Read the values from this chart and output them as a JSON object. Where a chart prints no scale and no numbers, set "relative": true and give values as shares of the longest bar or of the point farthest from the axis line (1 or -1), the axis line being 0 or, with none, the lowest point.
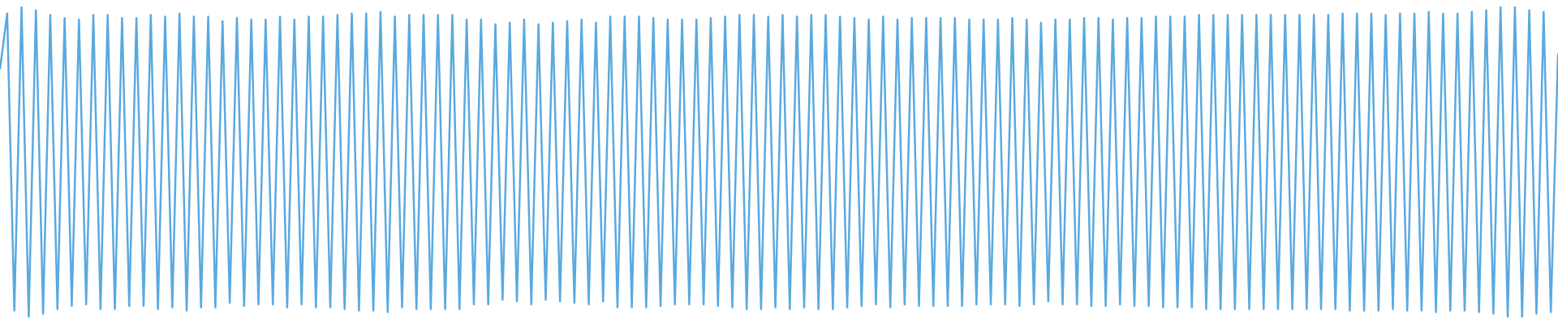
{
  "chart_data": {
    "type": "line",
    "relative": true,
    "categories": [
      null,
      null,
      null,
      null,
      null,
      null,
      null,
      null,
      null,
      null,
      null,
      null,
      null,
      null,
      null,
      null,
      null,
      null,
      null,
      null,
      null,
      null,
      null,
      null,
      null,
      null,
      null,
      null,
      null,
      null,
      null,
      null,
      null,
      null,
      null,
      null,
      null,
      null,
      null,
      null,
      null,
      null,
      null,
      null,
      null,
      null,
      null,
      null,
      null,
      null,
      null,
      null,
      null,
      null,
      null,
      null,
      null,
      null,
      null,
      null,
      null,
      null,
      null,
      null,
      null,
      null,
      null,
      null,
      null,
      null,
      null,
      null,
      null,
      null,
      null,
      null,
      null,
      null,
      null,
      null,
      null,
      null,
      null,
      null,
      null,
      null,
      null,
      null,
      null,
      null,
      null,
      null,
      null,
      null,
      null,
      null,
      null,
      null,
      null,
      null,
      null,
      null,
      null,
      null,
      null,
      null,
      null,
      null,
      null,
      null,
      null,
      null,
      null,
      null,
      null,
      null,
      null,
      null,
      null,
      null,
      null,
      null,
      null,
      null,
      null,
      null,
      null,
      null,
      null,
      null,
      null,
      null,
      null,
      null,
      null,
      null,
      null,
      null,
      null,
      null,
      null,
      null,
      null,
      null,
      null,
      null,
      null,
      null,
      null,
      null,
      null,
      null,
      null,
      null,
      null,
      null,
      null,
      null,
      null,
      null,
      null,
      null,
      null,
      null,
      null,
      null,
      null,
      null,
      null,
      null,
      null,
      null,
      null,
      null,
      null,
      null,
      null,
      null,
      null,
      null,
      null,
      null,
      null,
      null,
      null,
      null,
      null,
      null,
      null,
      null,
      null,
      null,
      null,
      null,
      null,
      null,
      null,
      null,
      null,
      null,
      null,
      null,
      null,
      null,
      null,
      null,
      null,
      null,
      null,
      null,
      null,
      null,
      null,
      null,
      null,
      null,
      null,
      null
    ],
    "series": [
      {
        "color": "#5aa9e0",
        "values": [
          0.8,
          0.98,
          0.02,
          1,
          0,
          0.99,
          0.01,
          0.975,
          0.025,
          0.965,
          0.035,
          0.96,
          0.04,
          0.975,
          0.025,
          0.975,
          0.025,
          0.965,
          0.035,
          0.965,
          0.035,
          0.975,
          0.025,
          0.97,
          0.03,
          0.98,
          0.02,
          0.97,
          0.03,
          0.97,
          0.03,
          0.955,
          0.045,
          0.965,
          0.035,
          0.96,
          0.04,
          0.96,
          0.04,
          0.97,
          0.03,
          0.96,
          0.04,
          0.97,
          0.03,
          0.97,
          0.03,
          0.975,
          0.025,
          0.98,
          0.02,
          0.98,
          0.02,
          0.985,
          0.015,
          0.97,
          0.03,
          0.975,
          0.025,
          0.975,
          0.025,
          0.975,
          0.025,
          0.975,
          0.025,
          0.96,
          0.04,
          0.96,
          0.04,
          0.945,
          0.055,
          0.95,
          0.05,
          0.96,
          0.04,
          0.945,
          0.055,
          0.95,
          0.05,
          0.955,
          0.045,
          0.96,
          0.04,
          0.95,
          0.05,
          0.97,
          0.03,
          0.97,
          0.03,
          0.97,
          0.03,
          0.965,
          0.035,
          0.96,
          0.04,
          0.96,
          0.04,
          0.96,
          0.04,
          0.965,
          0.035,
          0.97,
          0.03,
          0.975,
          0.025,
          0.975,
          0.025,
          0.97,
          0.03,
          0.975,
          0.025,
          0.97,
          0.03,
          0.975,
          0.025,
          0.975,
          0.025,
          0.97,
          0.03,
          0.965,
          0.035,
          0.96,
          0.04,
          0.97,
          0.03,
          0.96,
          0.04,
          0.965,
          0.035,
          0.965,
          0.035,
          0.965,
          0.035,
          0.965,
          0.035,
          0.96,
          0.04,
          0.96,
          0.04,
          0.96,
          0.04,
          0.965,
          0.035,
          0.96,
          0.04,
          0.95,
          0.05,
          0.96,
          0.04,
          0.96,
          0.04,
          0.965,
          0.035,
          0.965,
          0.035,
          0.96,
          0.04,
          0.965,
          0.035,
          0.965,
          0.035,
          0.97,
          0.03,
          0.97,
          0.03,
          0.97,
          0.03,
          0.975,
          0.025,
          0.975,
          0.025,
          0.975,
          0.025,
          0.975,
          0.025,
          0.975,
          0.025,
          0.975,
          0.025,
          0.975,
          0.025,
          0.975,
          0.025,
          0.975,
          0.025,
          0.975,
          0.025,
          0.98,
          0.02,
          0.98,
          0.02,
          0.98,
          0.02,
          0.975,
          0.025,
          0.98,
          0.02,
          0.98,
          0.02,
          0.985,
          0.015,
          0.98,
          0.02,
          0.98,
          0.02,
          0.985,
          0.015,
          0.99,
          0.01,
          1,
          0,
          1,
          0,
          0.99,
          0.01,
          0.985,
          0.015,
          0.85
        ]
      }
    ]
  }
}
